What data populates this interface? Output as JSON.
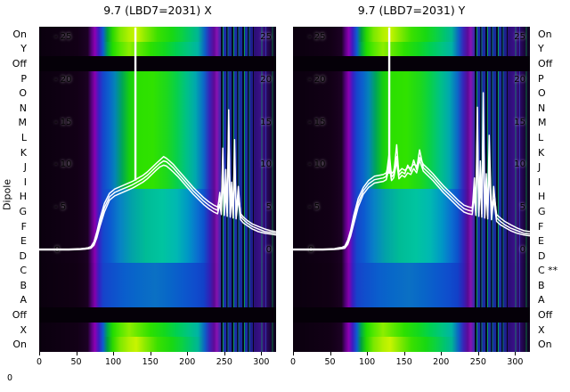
{
  "titles": {
    "left": "9.7 (LBD7=2031) X",
    "right": "9.7 (LBD7=2031) Y"
  },
  "ylabel": "Dipole",
  "origin_label": "0",
  "row_labels_left": [
    "On",
    "Y",
    "Off",
    "P",
    "O",
    "N",
    "M",
    "L",
    "K",
    "J",
    "I",
    "H",
    "G",
    "F",
    "E",
    "D",
    "C",
    "B",
    "A",
    "Off",
    "X",
    "On"
  ],
  "row_labels_right": [
    "On",
    "Y",
    "Off",
    "P",
    "O",
    "N",
    "M",
    "L",
    "K",
    "J",
    "I",
    "H",
    "G",
    "F",
    "E",
    "D",
    "C **",
    "B",
    "A",
    "Off",
    "X",
    "On"
  ],
  "inner_ticks": {
    "left": [
      {
        "v": 25,
        "t": "- 25"
      },
      {
        "v": 20,
        "t": "- 20"
      },
      {
        "v": 15,
        "t": "- 15"
      },
      {
        "v": 10,
        "t": "- 10"
      },
      {
        "v": 5,
        "t": "- 5"
      },
      {
        "v": 0,
        "t": "0"
      }
    ],
    "right": [
      {
        "v": 25,
        "t": "25"
      },
      {
        "v": 20,
        "t": "20"
      },
      {
        "v": 15,
        "t": "15"
      },
      {
        "v": 10,
        "t": "10"
      },
      {
        "v": 5,
        "t": "5"
      },
      {
        "v": 0,
        "t": "0"
      }
    ]
  },
  "colors": {
    "trace": "#ffffff",
    "text": "#000000",
    "background": "#ffffff",
    "off_band": "#050008",
    "purple": "#8a00b0",
    "blue": "#1546cc",
    "green": "#2ce000",
    "yellow": "#b2f000",
    "cyan": "#00b8b2"
  },
  "chart_data": [
    {
      "type": "heatmap",
      "title": "9.7 (LBD7=2031) X",
      "xlim": [
        0,
        320
      ],
      "ylim": [
        0,
        26.5
      ],
      "x_ticks": [
        0,
        50,
        100,
        150,
        200,
        250,
        300
      ],
      "y_ticks": [
        0,
        5,
        10,
        15,
        20,
        25
      ],
      "colormap": "nipy_spectral-like",
      "rows": [
        {
          "label": "On",
          "kind": "on"
        },
        {
          "label": "Y",
          "kind": "on2"
        },
        {
          "label": "Off",
          "kind": "off"
        },
        {
          "label": "P",
          "kind": "hot"
        },
        {
          "label": "O",
          "kind": "hot"
        },
        {
          "label": "N",
          "kind": "hot"
        },
        {
          "label": "M",
          "kind": "hot"
        },
        {
          "label": "L",
          "kind": "hot"
        },
        {
          "label": "K",
          "kind": "hot"
        },
        {
          "label": "J",
          "kind": "hot"
        },
        {
          "label": "I",
          "kind": "hot"
        },
        {
          "label": "H",
          "kind": "cool"
        },
        {
          "label": "G",
          "kind": "cool"
        },
        {
          "label": "F",
          "kind": "cool"
        },
        {
          "label": "E",
          "kind": "cool"
        },
        {
          "label": "D",
          "kind": "cool"
        },
        {
          "label": "C",
          "kind": "deep"
        },
        {
          "label": "B",
          "kind": "deep"
        },
        {
          "label": "A",
          "kind": "deep"
        },
        {
          "label": "Off",
          "kind": "off"
        },
        {
          "label": "X",
          "kind": "on2"
        },
        {
          "label": "On",
          "kind": "on"
        }
      ],
      "stripe_zones": [
        {
          "x_from": 245,
          "x_to": 290
        },
        {
          "x_from": 297,
          "x_to": 316
        }
      ],
      "spike": {
        "x": 130,
        "y_from": 8.2,
        "y_to": 27
      },
      "x": [
        0,
        40,
        56,
        62,
        66,
        70,
        74,
        78,
        82,
        88,
        95,
        102,
        110,
        118,
        126,
        130,
        134,
        140,
        146,
        152,
        158,
        163,
        168,
        172,
        176,
        181,
        187,
        194,
        201,
        208,
        215,
        222,
        229,
        236,
        241,
        244,
        246,
        248,
        250,
        252,
        254,
        256,
        258,
        260,
        262,
        264,
        266,
        269,
        272,
        276,
        281,
        288,
        296,
        305,
        313,
        320
      ],
      "series": [
        {
          "name": "trace-1",
          "y": [
            0.1,
            0.1,
            0.15,
            0.2,
            0.2,
            0.3,
            0.8,
            1.8,
            3.2,
            5.0,
            6.3,
            6.8,
            7.1,
            7.4,
            7.7,
            7.9,
            8.1,
            8.4,
            8.8,
            9.3,
            9.8,
            10.2,
            10.5,
            10.4,
            10.1,
            9.7,
            9.1,
            8.4,
            7.7,
            7.0,
            6.4,
            5.8,
            5.3,
            4.9,
            4.7,
            6.8,
            4.6,
            12.0,
            4.5,
            9.5,
            4.4,
            16.5,
            4.3,
            8.0,
            4.2,
            13.0,
            4.1,
            7.5,
            4.0,
            3.6,
            3.2,
            2.8,
            2.5,
            2.2,
            2.1,
            2.0
          ]
        },
        {
          "name": "trace-2",
          "y": [
            0.15,
            0.15,
            0.2,
            0.25,
            0.3,
            0.45,
            1.0,
            2.2,
            3.7,
            5.5,
            6.7,
            7.2,
            7.5,
            7.8,
            8.1,
            8.3,
            8.5,
            8.8,
            9.2,
            9.7,
            10.2,
            10.6,
            11.0,
            10.8,
            10.5,
            10.1,
            9.5,
            8.8,
            8.1,
            7.4,
            6.8,
            6.2,
            5.7,
            5.3,
            5.1,
            6.0,
            5.0,
            10.5,
            4.9,
            8.3,
            4.8,
            14.8,
            4.7,
            7.3,
            4.6,
            11.5,
            4.5,
            6.9,
            4.3,
            3.9,
            3.5,
            3.1,
            2.8,
            2.5,
            2.3,
            2.2
          ]
        },
        {
          "name": "trace-3",
          "y": [
            0.05,
            0.05,
            0.1,
            0.15,
            0.2,
            0.25,
            0.6,
            1.5,
            2.8,
            4.5,
            5.9,
            6.4,
            6.7,
            7.0,
            7.3,
            7.5,
            7.7,
            8.0,
            8.4,
            8.9,
            9.4,
            9.8,
            10.0,
            9.9,
            9.6,
            9.2,
            8.7,
            8.0,
            7.3,
            6.6,
            6.0,
            5.4,
            4.9,
            4.5,
            4.3,
            5.4,
            4.2,
            9.0,
            4.1,
            7.0,
            4.0,
            12.5,
            3.9,
            6.4,
            3.8,
            10.2,
            3.7,
            6.1,
            3.6,
            3.2,
            2.9,
            2.5,
            2.2,
            2.0,
            1.9,
            1.8
          ]
        }
      ]
    },
    {
      "type": "heatmap",
      "title": "9.7 (LBD7=2031) Y",
      "xlim": [
        0,
        320
      ],
      "ylim": [
        0,
        26.5
      ],
      "x_ticks": [
        0,
        50,
        100,
        150,
        200,
        250,
        300
      ],
      "y_ticks": [
        0,
        5,
        10,
        15,
        20,
        25
      ],
      "colormap": "nipy_spectral-like",
      "rows": [
        {
          "label": "On",
          "kind": "on"
        },
        {
          "label": "Y",
          "kind": "on2"
        },
        {
          "label": "Off",
          "kind": "off"
        },
        {
          "label": "P",
          "kind": "hot"
        },
        {
          "label": "O",
          "kind": "hot"
        },
        {
          "label": "N",
          "kind": "hot"
        },
        {
          "label": "M",
          "kind": "hot"
        },
        {
          "label": "L",
          "kind": "hot"
        },
        {
          "label": "K",
          "kind": "hot"
        },
        {
          "label": "J",
          "kind": "hot"
        },
        {
          "label": "I",
          "kind": "hot"
        },
        {
          "label": "H",
          "kind": "cool"
        },
        {
          "label": "G",
          "kind": "cool"
        },
        {
          "label": "F",
          "kind": "cool"
        },
        {
          "label": "E",
          "kind": "cool"
        },
        {
          "label": "D",
          "kind": "cool"
        },
        {
          "label": "C",
          "kind": "deep"
        },
        {
          "label": "B",
          "kind": "deep"
        },
        {
          "label": "A",
          "kind": "deep"
        },
        {
          "label": "Off",
          "kind": "off"
        },
        {
          "label": "X",
          "kind": "on2"
        },
        {
          "label": "On",
          "kind": "on"
        }
      ],
      "stripe_zones": [
        {
          "x_from": 245,
          "x_to": 290
        },
        {
          "x_from": 297,
          "x_to": 316
        }
      ],
      "spike": {
        "x": 130,
        "y_from": 9.0,
        "y_to": 27
      },
      "x": [
        0,
        40,
        56,
        62,
        66,
        70,
        74,
        78,
        82,
        88,
        95,
        102,
        110,
        116,
        122,
        126,
        130,
        133,
        136,
        140,
        143,
        147,
        151,
        155,
        159,
        163,
        167,
        171,
        176,
        182,
        189,
        196,
        203,
        210,
        217,
        224,
        231,
        237,
        242,
        245,
        247,
        249,
        251,
        253,
        255,
        257,
        259,
        261,
        263,
        265,
        268,
        271,
        275,
        280,
        286,
        294,
        303,
        312,
        320
      ],
      "series": [
        {
          "name": "trace-1",
          "y": [
            0.1,
            0.1,
            0.15,
            0.2,
            0.25,
            0.35,
            0.9,
            2.0,
            3.6,
            5.6,
            7.0,
            7.8,
            8.3,
            8.4,
            8.5,
            8.7,
            11.5,
            8.6,
            8.9,
            12.4,
            8.8,
            9.2,
            9.0,
            10.0,
            9.3,
            10.6,
            9.5,
            11.8,
            9.7,
            9.2,
            8.6,
            7.9,
            7.2,
            6.6,
            6.0,
            5.4,
            4.9,
            4.7,
            4.6,
            8.5,
            4.5,
            16.8,
            4.4,
            10.5,
            4.3,
            18.5,
            4.2,
            9.0,
            4.1,
            13.5,
            4.0,
            7.5,
            3.8,
            3.4,
            3.0,
            2.6,
            2.3,
            2.0,
            1.9
          ]
        },
        {
          "name": "trace-2",
          "y": [
            0.15,
            0.15,
            0.2,
            0.3,
            0.35,
            0.5,
            1.2,
            2.4,
            4.1,
            6.1,
            7.4,
            8.2,
            8.7,
            8.8,
            8.9,
            9.1,
            10.3,
            9.0,
            9.3,
            11.0,
            9.2,
            9.6,
            9.4,
            9.7,
            9.7,
            10.1,
            9.9,
            10.9,
            10.1,
            9.6,
            9.0,
            8.3,
            7.6,
            7.0,
            6.4,
            5.8,
            5.3,
            5.1,
            5.0,
            7.0,
            4.9,
            14.5,
            4.8,
            9.0,
            4.7,
            16.0,
            4.6,
            8.0,
            4.5,
            11.5,
            4.4,
            7.0,
            4.2,
            3.8,
            3.4,
            3.0,
            2.6,
            2.3,
            2.2
          ]
        },
        {
          "name": "trace-3",
          "y": [
            0.05,
            0.05,
            0.1,
            0.15,
            0.2,
            0.25,
            0.7,
            1.7,
            3.1,
            5.1,
            6.6,
            7.4,
            7.9,
            8.0,
            8.1,
            8.3,
            9.8,
            8.2,
            8.5,
            10.4,
            8.4,
            8.8,
            8.6,
            9.1,
            8.9,
            9.6,
            9.1,
            10.6,
            9.3,
            8.8,
            8.2,
            7.5,
            6.8,
            6.2,
            5.6,
            5.0,
            4.5,
            4.3,
            4.2,
            6.5,
            4.1,
            13.0,
            4.0,
            8.0,
            3.9,
            14.5,
            3.8,
            7.0,
            3.7,
            10.0,
            3.6,
            6.0,
            3.4,
            3.0,
            2.7,
            2.3,
            2.0,
            1.8,
            1.7
          ]
        }
      ]
    }
  ]
}
